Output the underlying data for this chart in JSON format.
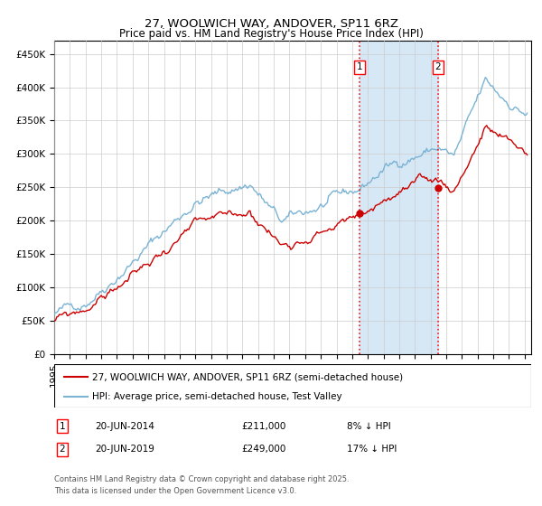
{
  "title1": "27, WOOLWICH WAY, ANDOVER, SP11 6RZ",
  "title2": "Price paid vs. HM Land Registry's House Price Index (HPI)",
  "legend1": "27, WOOLWICH WAY, ANDOVER, SP11 6RZ (semi-detached house)",
  "legend2": "HPI: Average price, semi-detached house, Test Valley",
  "hpi_color": "#7ab3d4",
  "price_color": "#cc0000",
  "purchase1_price": 211000,
  "purchase2_price": 249000,
  "purchase1_pct": "8% ↓ HPI",
  "purchase2_pct": "17% ↓ HPI",
  "ylim_min": 0,
  "ylim_max": 470000,
  "yticks": [
    0,
    50000,
    100000,
    150000,
    200000,
    250000,
    300000,
    350000,
    400000,
    450000
  ],
  "ytick_labels": [
    "£0",
    "£50K",
    "£100K",
    "£150K",
    "£200K",
    "£250K",
    "£300K",
    "£350K",
    "£400K",
    "£450K"
  ],
  "footnote1": "Contains HM Land Registry data © Crown copyright and database right 2025.",
  "footnote2": "This data is licensed under the Open Government Licence v3.0.",
  "shade_color": "#d6e8f5",
  "grid_color": "#cccccc"
}
